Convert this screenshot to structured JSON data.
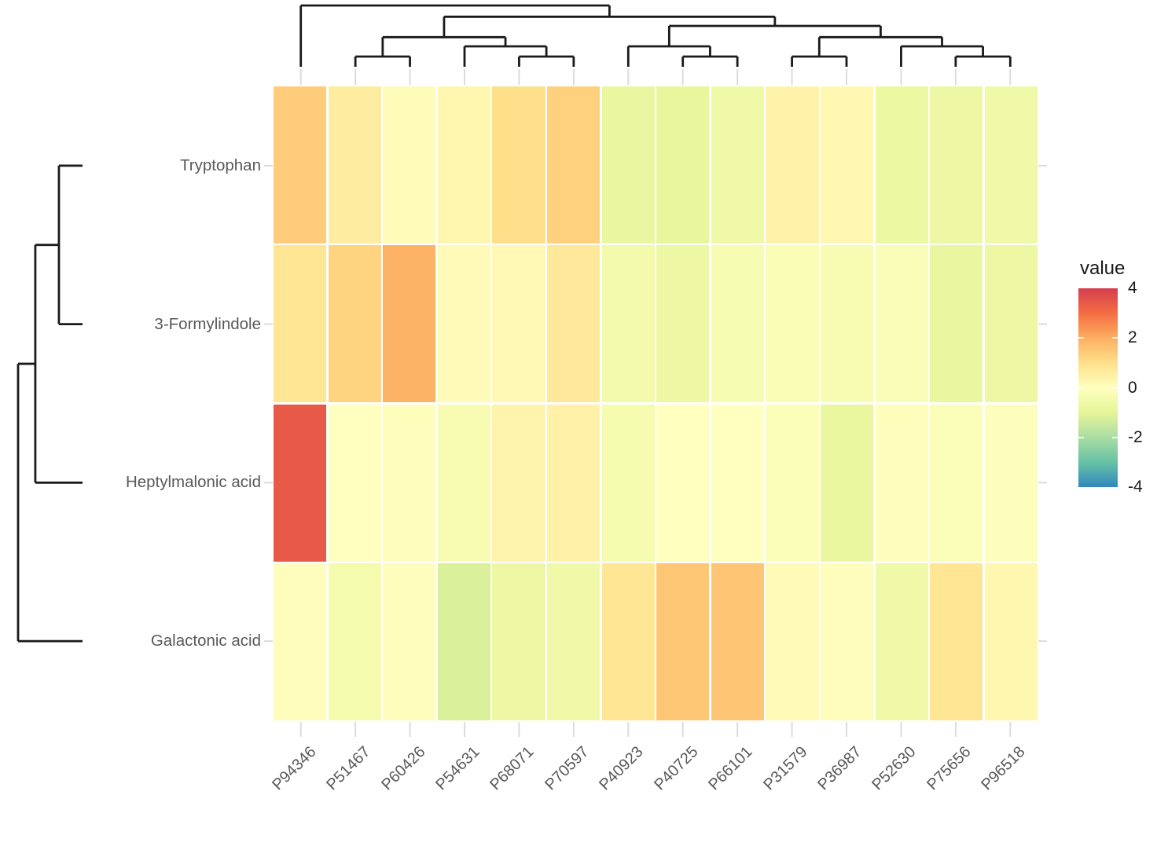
{
  "chart_data": {
    "type": "heatmap",
    "rows": [
      "Tryptophan",
      "3-Formylindole",
      "Heptylmalonic acid",
      "Galactonic acid"
    ],
    "columns": [
      "P94346",
      "P51467",
      "P60426",
      "P54631",
      "P68071",
      "P70597",
      "P40923",
      "P40725",
      "P66101",
      "P31579",
      "P36987",
      "P52630",
      "P75656",
      "P96518"
    ],
    "values": [
      [
        1.4,
        0.6,
        0.1,
        0.3,
        1.0,
        1.3,
        -0.8,
        -0.9,
        -0.6,
        0.4,
        0.25,
        -0.75,
        -0.7,
        -0.6
      ],
      [
        0.8,
        1.25,
        1.9,
        0.15,
        0.2,
        0.7,
        -0.5,
        -0.7,
        -0.35,
        -0.25,
        -0.3,
        -0.2,
        -0.8,
        -0.7
      ],
      [
        3.4,
        0.0,
        0.05,
        -0.3,
        0.35,
        0.45,
        -0.4,
        0.0,
        0.0,
        -0.15,
        -0.85,
        0.05,
        -0.15,
        -0.1
      ],
      [
        0.05,
        -0.45,
        0.05,
        -1.2,
        -0.7,
        -0.6,
        0.8,
        1.5,
        1.55,
        0.15,
        0.05,
        -0.6,
        0.8,
        0.3
      ]
    ],
    "value_range": [
      -4,
      4
    ],
    "legend": {
      "title": "value",
      "tick_labels": [
        "4",
        "2",
        "0",
        "-2",
        "-4"
      ],
      "tick_values": [
        4,
        2,
        0,
        -2,
        -4
      ]
    },
    "colormap_stops": [
      {
        "value": -4,
        "color": "#3288bd"
      },
      {
        "value": -3,
        "color": "#66c2a5"
      },
      {
        "value": -2,
        "color": "#abdda4"
      },
      {
        "value": -1,
        "color": "#e6f598"
      },
      {
        "value": 0,
        "color": "#ffffbf"
      },
      {
        "value": 1,
        "color": "#fee08b"
      },
      {
        "value": 2,
        "color": "#fdae61"
      },
      {
        "value": 3,
        "color": "#f46d43"
      },
      {
        "value": 4,
        "color": "#d53e4f"
      }
    ],
    "column_dendrogram": {
      "comment": "nested [height, left, right]; leaves are 0-based column indices",
      "max_height": 6,
      "tree": [
        6,
        0,
        [
          4.9,
          [
            2.9,
            [
              1,
              1,
              2
            ],
            [
              2,
              3,
              [
                1,
                4,
                5
              ]
            ]
          ],
          [
            4,
            [
              2,
              6,
              [
                1,
                7,
                8
              ]
            ],
            [
              2.9,
              [
                1,
                9,
                10
              ],
              [
                2,
                11,
                [
                  1,
                  12,
                  13
                ]
              ]
            ]
          ]
        ]
      ]
    },
    "row_dendrogram": {
      "comment": "nested [height, left, right]; leaves are 0-based row indices",
      "max_height": 2.73,
      "tree": [
        2.73,
        [
          2,
          [
            1,
            0,
            1
          ],
          2
        ],
        3
      ]
    },
    "colors": {
      "axis_text": "#595959",
      "legend_text": "#1a1a1a",
      "dendrogram_line": "#1a1a1a",
      "axis_tick": "#dcdcdc",
      "background": "#ffffff"
    }
  }
}
